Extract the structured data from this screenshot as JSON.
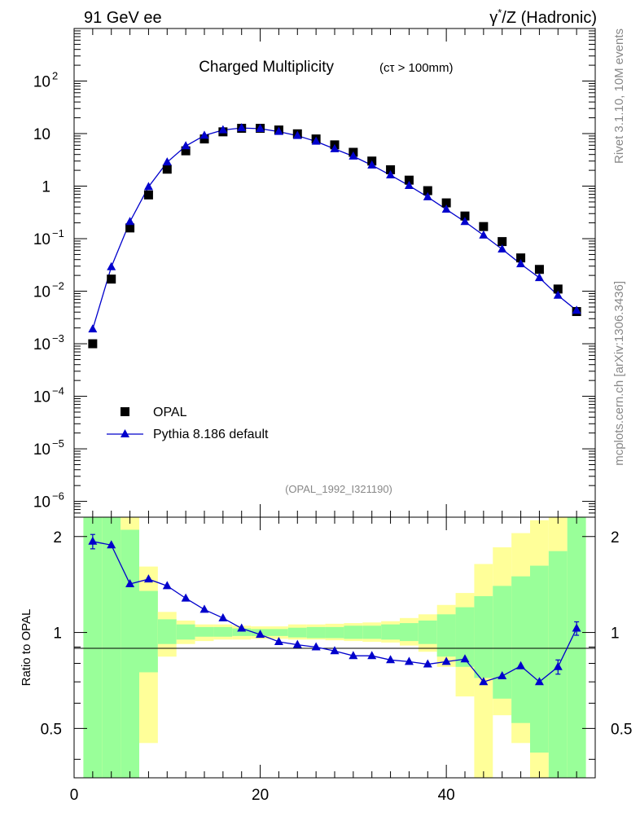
{
  "header": {
    "left": "91 GeV ee",
    "right_prefix": "γ",
    "right_sup": "*",
    "right_rest": "/Z (Hadronic)"
  },
  "title": {
    "main": "Charged Multiplicity",
    "sub": "(cτ > 100mm)"
  },
  "side_labels": {
    "upper": "Rivet 3.1.10,  10M events",
    "lower": "mcplots.cern.ch [arXiv:1306.3436]"
  },
  "analysis_tag": "(OPAL_1992_I321190)",
  "legend": [
    {
      "label": "OPAL",
      "marker": "square"
    },
    {
      "label": "Pythia 8.186 default",
      "marker": "triangle-line"
    }
  ],
  "ratio_ylabel": "Ratio to OPAL",
  "colors": {
    "mc": "#0000cc",
    "data": "#000000",
    "band_inner": "#99ff99",
    "band_outer": "#ffff99",
    "side_text": "#888888"
  },
  "chart_data": {
    "type": "scatter",
    "log_y": true,
    "xlim": [
      0,
      56
    ],
    "ylim": [
      5e-07,
      1000
    ],
    "y_ticks": [
      {
        "value": 1e-06,
        "base": "10",
        "exp": "−6"
      },
      {
        "value": 1e-05,
        "base": "10",
        "exp": "−5"
      },
      {
        "value": 0.0001,
        "base": "10",
        "exp": "−4"
      },
      {
        "value": 0.001,
        "base": "10",
        "exp": "−3"
      },
      {
        "value": 0.01,
        "base": "10",
        "exp": "−2"
      },
      {
        "value": 0.1,
        "base": "10",
        "exp": "−1"
      },
      {
        "value": 1,
        "base": "1",
        "exp": ""
      },
      {
        "value": 10,
        "base": "10",
        "exp": ""
      },
      {
        "value": 100,
        "base": "10",
        "exp": "2"
      }
    ],
    "x_ticks": [
      0,
      20,
      40
    ],
    "series": [
      {
        "name": "OPAL",
        "x": [
          2,
          4,
          6,
          8,
          10,
          12,
          14,
          16,
          18,
          20,
          22,
          24,
          26,
          28,
          30,
          32,
          34,
          36,
          38,
          40,
          42,
          44,
          46,
          48,
          50,
          52,
          54
        ],
        "y": [
          0.001,
          0.017,
          0.16,
          0.68,
          2.1,
          4.7,
          7.9,
          10.8,
          12.6,
          12.6,
          11.7,
          9.9,
          7.9,
          6.1,
          4.4,
          3.0,
          2.05,
          1.3,
          0.82,
          0.48,
          0.27,
          0.17,
          0.088,
          0.043,
          0.026,
          0.011,
          0.0041
        ]
      },
      {
        "name": "Pythia 8.186 default",
        "x": [
          2,
          4,
          6,
          8,
          10,
          12,
          14,
          16,
          18,
          20,
          22,
          24,
          26,
          28,
          30,
          32,
          34,
          36,
          38,
          40,
          42,
          44,
          46,
          48,
          50,
          52,
          54
        ],
        "y": [
          0.0019,
          0.029,
          0.21,
          0.97,
          2.85,
          5.8,
          9.2,
          11.7,
          12.8,
          12.4,
          10.9,
          9.1,
          7.1,
          5.1,
          3.7,
          2.5,
          1.62,
          1.02,
          0.62,
          0.36,
          0.21,
          0.116,
          0.063,
          0.033,
          0.018,
          0.0083,
          0.0043
        ]
      }
    ],
    "ratio": {
      "ylabel": "Ratio to OPAL",
      "ylim": [
        0.35,
        2.3
      ],
      "y_ticks": [
        "0.5",
        "1",
        "2"
      ],
      "x": [
        2,
        4,
        6,
        8,
        10,
        12,
        14,
        16,
        18,
        20,
        22,
        24,
        26,
        28,
        30,
        32,
        34,
        36,
        38,
        40,
        42,
        44,
        46,
        48,
        50,
        52,
        54
      ],
      "y": [
        1.93,
        1.88,
        1.42,
        1.47,
        1.4,
        1.28,
        1.18,
        1.11,
        1.03,
        0.985,
        0.935,
        0.915,
        0.9,
        0.875,
        0.845,
        0.845,
        0.82,
        0.81,
        0.795,
        0.81,
        0.825,
        0.7,
        0.73,
        0.785,
        0.7,
        0.78,
        1.03
      ],
      "yerr": [
        0.1,
        0,
        0,
        0,
        0,
        0,
        0,
        0,
        0,
        0,
        0,
        0,
        0,
        0,
        0,
        0,
        0,
        0,
        0,
        0,
        0,
        0,
        0,
        0,
        0,
        0.04,
        0.05
      ],
      "bands": {
        "edges": [
          1,
          3,
          5,
          7,
          9,
          11,
          13,
          15,
          17,
          19,
          21,
          23,
          25,
          27,
          29,
          31,
          33,
          35,
          37,
          39,
          41,
          43,
          45,
          47,
          49,
          51,
          53,
          55
        ],
        "inner_lo": [
          0.3,
          0.3,
          0.3,
          0.75,
          0.92,
          0.95,
          0.97,
          0.97,
          0.975,
          0.975,
          0.975,
          0.965,
          0.96,
          0.96,
          0.955,
          0.955,
          0.95,
          0.94,
          0.92,
          0.84,
          0.78,
          0.72,
          0.62,
          0.52,
          0.42,
          0.35,
          0.3
        ],
        "inner_hi": [
          2.5,
          2.5,
          2.1,
          1.35,
          1.1,
          1.06,
          1.04,
          1.04,
          1.03,
          1.025,
          1.025,
          1.035,
          1.04,
          1.04,
          1.05,
          1.05,
          1.06,
          1.07,
          1.09,
          1.14,
          1.2,
          1.3,
          1.4,
          1.5,
          1.62,
          1.8,
          2.4
        ],
        "outer_lo": [
          0.3,
          0.3,
          0.3,
          0.45,
          0.84,
          0.92,
          0.94,
          0.95,
          0.95,
          0.955,
          0.955,
          0.95,
          0.95,
          0.945,
          0.94,
          0.935,
          0.93,
          0.91,
          0.87,
          0.78,
          0.63,
          0.3,
          0.55,
          0.45,
          0.3,
          0.3,
          0.3
        ],
        "outer_hi": [
          2.5,
          2.5,
          2.5,
          1.61,
          1.16,
          1.09,
          1.06,
          1.06,
          1.05,
          1.045,
          1.045,
          1.06,
          1.06,
          1.065,
          1.07,
          1.075,
          1.085,
          1.11,
          1.14,
          1.22,
          1.33,
          1.64,
          1.85,
          2.05,
          2.25,
          2.5,
          2.5
        ]
      }
    }
  }
}
